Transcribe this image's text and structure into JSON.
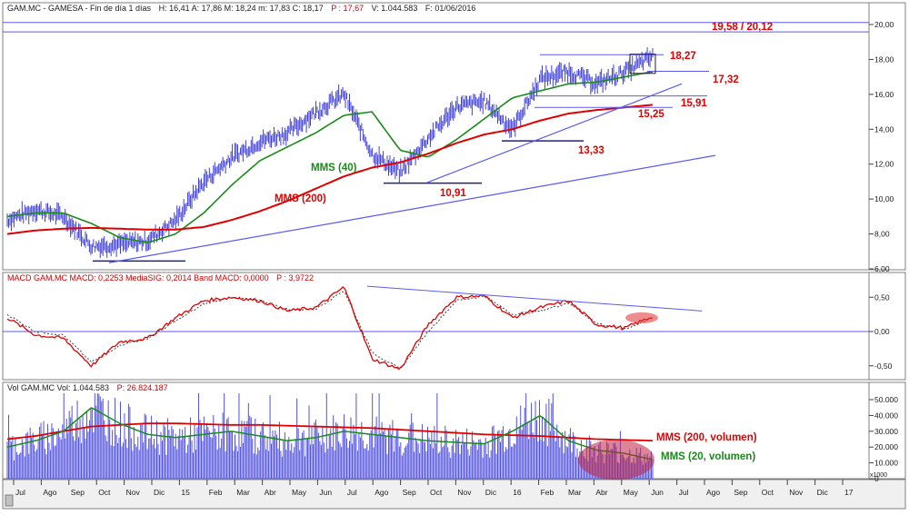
{
  "price_header": {
    "ticker": "GAM.MC - GAMESA - Fin de día 1 días",
    "values": "H: 16,41  A: 17,86  M: 18,24  m: 17,83  C: 18,17",
    "p": "P : 17,67",
    "volume": "V: 1.044.583",
    "date": "F: 01/06/2016"
  },
  "macd_header": {
    "label": "MACD  GAM.MC  MACD: 0,2253  MediaSIG: 0,2014  Band  MACD: 0,0000",
    "p": "P : 3,9722"
  },
  "volume_header": {
    "label": "Vol  GAM.MC  Vol: 1.044.583",
    "p": "P: 26.824.187"
  },
  "price_axis": [
    "20,00",
    "18,00",
    "16,00",
    "14,00",
    "12,00",
    "10,00",
    "8,00",
    "6,00"
  ],
  "macd_axis": [
    "0,50",
    "0,00",
    "-0,50"
  ],
  "volume_axis": [
    "50.000",
    "40.000",
    "30.000",
    "20.000",
    "10.000",
    "0"
  ],
  "volume_axis_unit": "x1000",
  "months": [
    "Jul",
    "Ago",
    "Sep",
    "Oct",
    "Nov",
    "Dic",
    "15",
    "Feb",
    "Mar",
    "Abr",
    "May",
    "Jun",
    "Jul",
    "Ago",
    "Sep",
    "Oct",
    "Nov",
    "Dic",
    "16",
    "Feb",
    "Mar",
    "Abr",
    "May",
    "Jun",
    "Jul",
    "Ago",
    "Sep",
    "Oct",
    "Nov",
    "Dic",
    "17"
  ],
  "annotations": {
    "target": "19,58 / 20,12",
    "r1827": "18,27",
    "r1732": "17,32",
    "r1591": "15,91",
    "r1525": "15,25",
    "r1333": "13,33",
    "r1091": "10,91",
    "mms40": "MMS (40)",
    "mms200": "MMS (200)",
    "vol200": "MMS (200, volumen)",
    "vol20": "MMS (20, volumen)"
  },
  "colors": {
    "price": "#3c3cd8",
    "mms40": "#1a8a1a",
    "mms200": "#e00000",
    "macd": "#e00000",
    "signal": "#404040",
    "volume": "#5050e0",
    "trend": "#5a5af0"
  },
  "chart_data": [
    {
      "type": "line",
      "title": "GAM.MC - GAMESA",
      "x": [
        "2014-07",
        "2014-08",
        "2014-09",
        "2014-10",
        "2014-11",
        "2014-12",
        "2015-01",
        "2015-02",
        "2015-03",
        "2015-04",
        "2015-05",
        "2015-06",
        "2015-07",
        "2015-08",
        "2015-09",
        "2015-10",
        "2015-11",
        "2015-12",
        "2016-01",
        "2016-02",
        "2016-03",
        "2016-04",
        "2016-05",
        "2016-06"
      ],
      "series": [
        {
          "name": "",
          "values": [
            8.8,
            9.4,
            9.0,
            7.3,
            7.4,
            7.6,
            8.8,
            11.0,
            12.4,
            13.3,
            13.8,
            15.0,
            16.0,
            12.6,
            11.5,
            13.5,
            15.3,
            15.6,
            14.0,
            16.9,
            17.3,
            16.6,
            17.3,
            18.17
          ]
        },
        {
          "name": "MMS (40)",
          "values": [
            9.0,
            9.2,
            9.2,
            8.6,
            7.8,
            7.5,
            8.0,
            9.2,
            10.8,
            12.2,
            13.0,
            13.8,
            14.8,
            15.0,
            12.8,
            12.4,
            13.4,
            14.6,
            15.8,
            16.2,
            16.6,
            16.7,
            17.0,
            17.3
          ]
        },
        {
          "name": "MMS (200)",
          "values": [
            8.0,
            8.2,
            8.3,
            8.35,
            8.3,
            8.25,
            8.25,
            8.4,
            8.8,
            9.3,
            9.9,
            10.6,
            11.3,
            11.8,
            12.1,
            12.6,
            13.2,
            13.7,
            14.0,
            14.5,
            14.9,
            15.1,
            15.25,
            15.4
          ]
        }
      ],
      "ylim": [
        6,
        20.5
      ],
      "levels": [
        19.58,
        20.12,
        18.27,
        17.32,
        15.91,
        15.25,
        13.33,
        10.91
      ]
    },
    {
      "type": "line",
      "title": "MACD",
      "x": [
        "2014-07",
        "2014-08",
        "2014-09",
        "2014-10",
        "2014-11",
        "2014-12",
        "2015-01",
        "2015-02",
        "2015-03",
        "2015-04",
        "2015-05",
        "2015-06",
        "2015-07",
        "2015-08",
        "2015-09",
        "2015-10",
        "2015-11",
        "2015-12",
        "2016-01",
        "2016-02",
        "2016-03",
        "2016-04",
        "2016-05",
        "2016-06"
      ],
      "series": [
        {
          "name": "MACD",
          "values": [
            0.2,
            -0.05,
            -0.1,
            -0.5,
            -0.15,
            -0.1,
            0.2,
            0.45,
            0.5,
            0.45,
            0.3,
            0.35,
            0.65,
            -0.4,
            -0.55,
            0.1,
            0.5,
            0.52,
            0.2,
            0.35,
            0.45,
            0.1,
            0.05,
            0.22
          ]
        },
        {
          "name": "MediaSIG",
          "values": [
            0.25,
            0.0,
            -0.05,
            -0.45,
            -0.2,
            -0.1,
            0.15,
            0.4,
            0.5,
            0.45,
            0.32,
            0.33,
            0.6,
            -0.3,
            -0.55,
            0.0,
            0.45,
            0.52,
            0.25,
            0.3,
            0.42,
            0.12,
            0.03,
            0.2
          ]
        }
      ],
      "ylim": [
        -0.65,
        0.7
      ]
    },
    {
      "type": "bar",
      "title": "Vol",
      "x": [
        "2014-07",
        "2014-08",
        "2014-09",
        "2014-10",
        "2014-11",
        "2014-12",
        "2015-01",
        "2015-02",
        "2015-03",
        "2015-04",
        "2015-05",
        "2015-06",
        "2015-07",
        "2015-08",
        "2015-09",
        "2015-10",
        "2015-11",
        "2015-12",
        "2016-01",
        "2016-02",
        "2016-03",
        "2016-04",
        "2016-05",
        "2016-06"
      ],
      "series": [
        {
          "name": "MMS (200, volumen)",
          "values": [
            25000,
            27000,
            30000,
            33000,
            34000,
            35000,
            35000,
            34500,
            34000,
            34000,
            33500,
            33000,
            32500,
            32000,
            31000,
            30000,
            29000,
            28000,
            27500,
            27000,
            26000,
            25000,
            24500,
            24000
          ]
        },
        {
          "name": "MMS (20, volumen)",
          "values": [
            20000,
            24000,
            30000,
            45000,
            35000,
            28000,
            26000,
            28000,
            30000,
            27000,
            24000,
            26000,
            30000,
            28000,
            26000,
            24000,
            23000,
            22000,
            30000,
            40000,
            24000,
            18000,
            16000,
            12000
          ]
        }
      ],
      "ylim": [
        0,
        55000
      ]
    }
  ]
}
